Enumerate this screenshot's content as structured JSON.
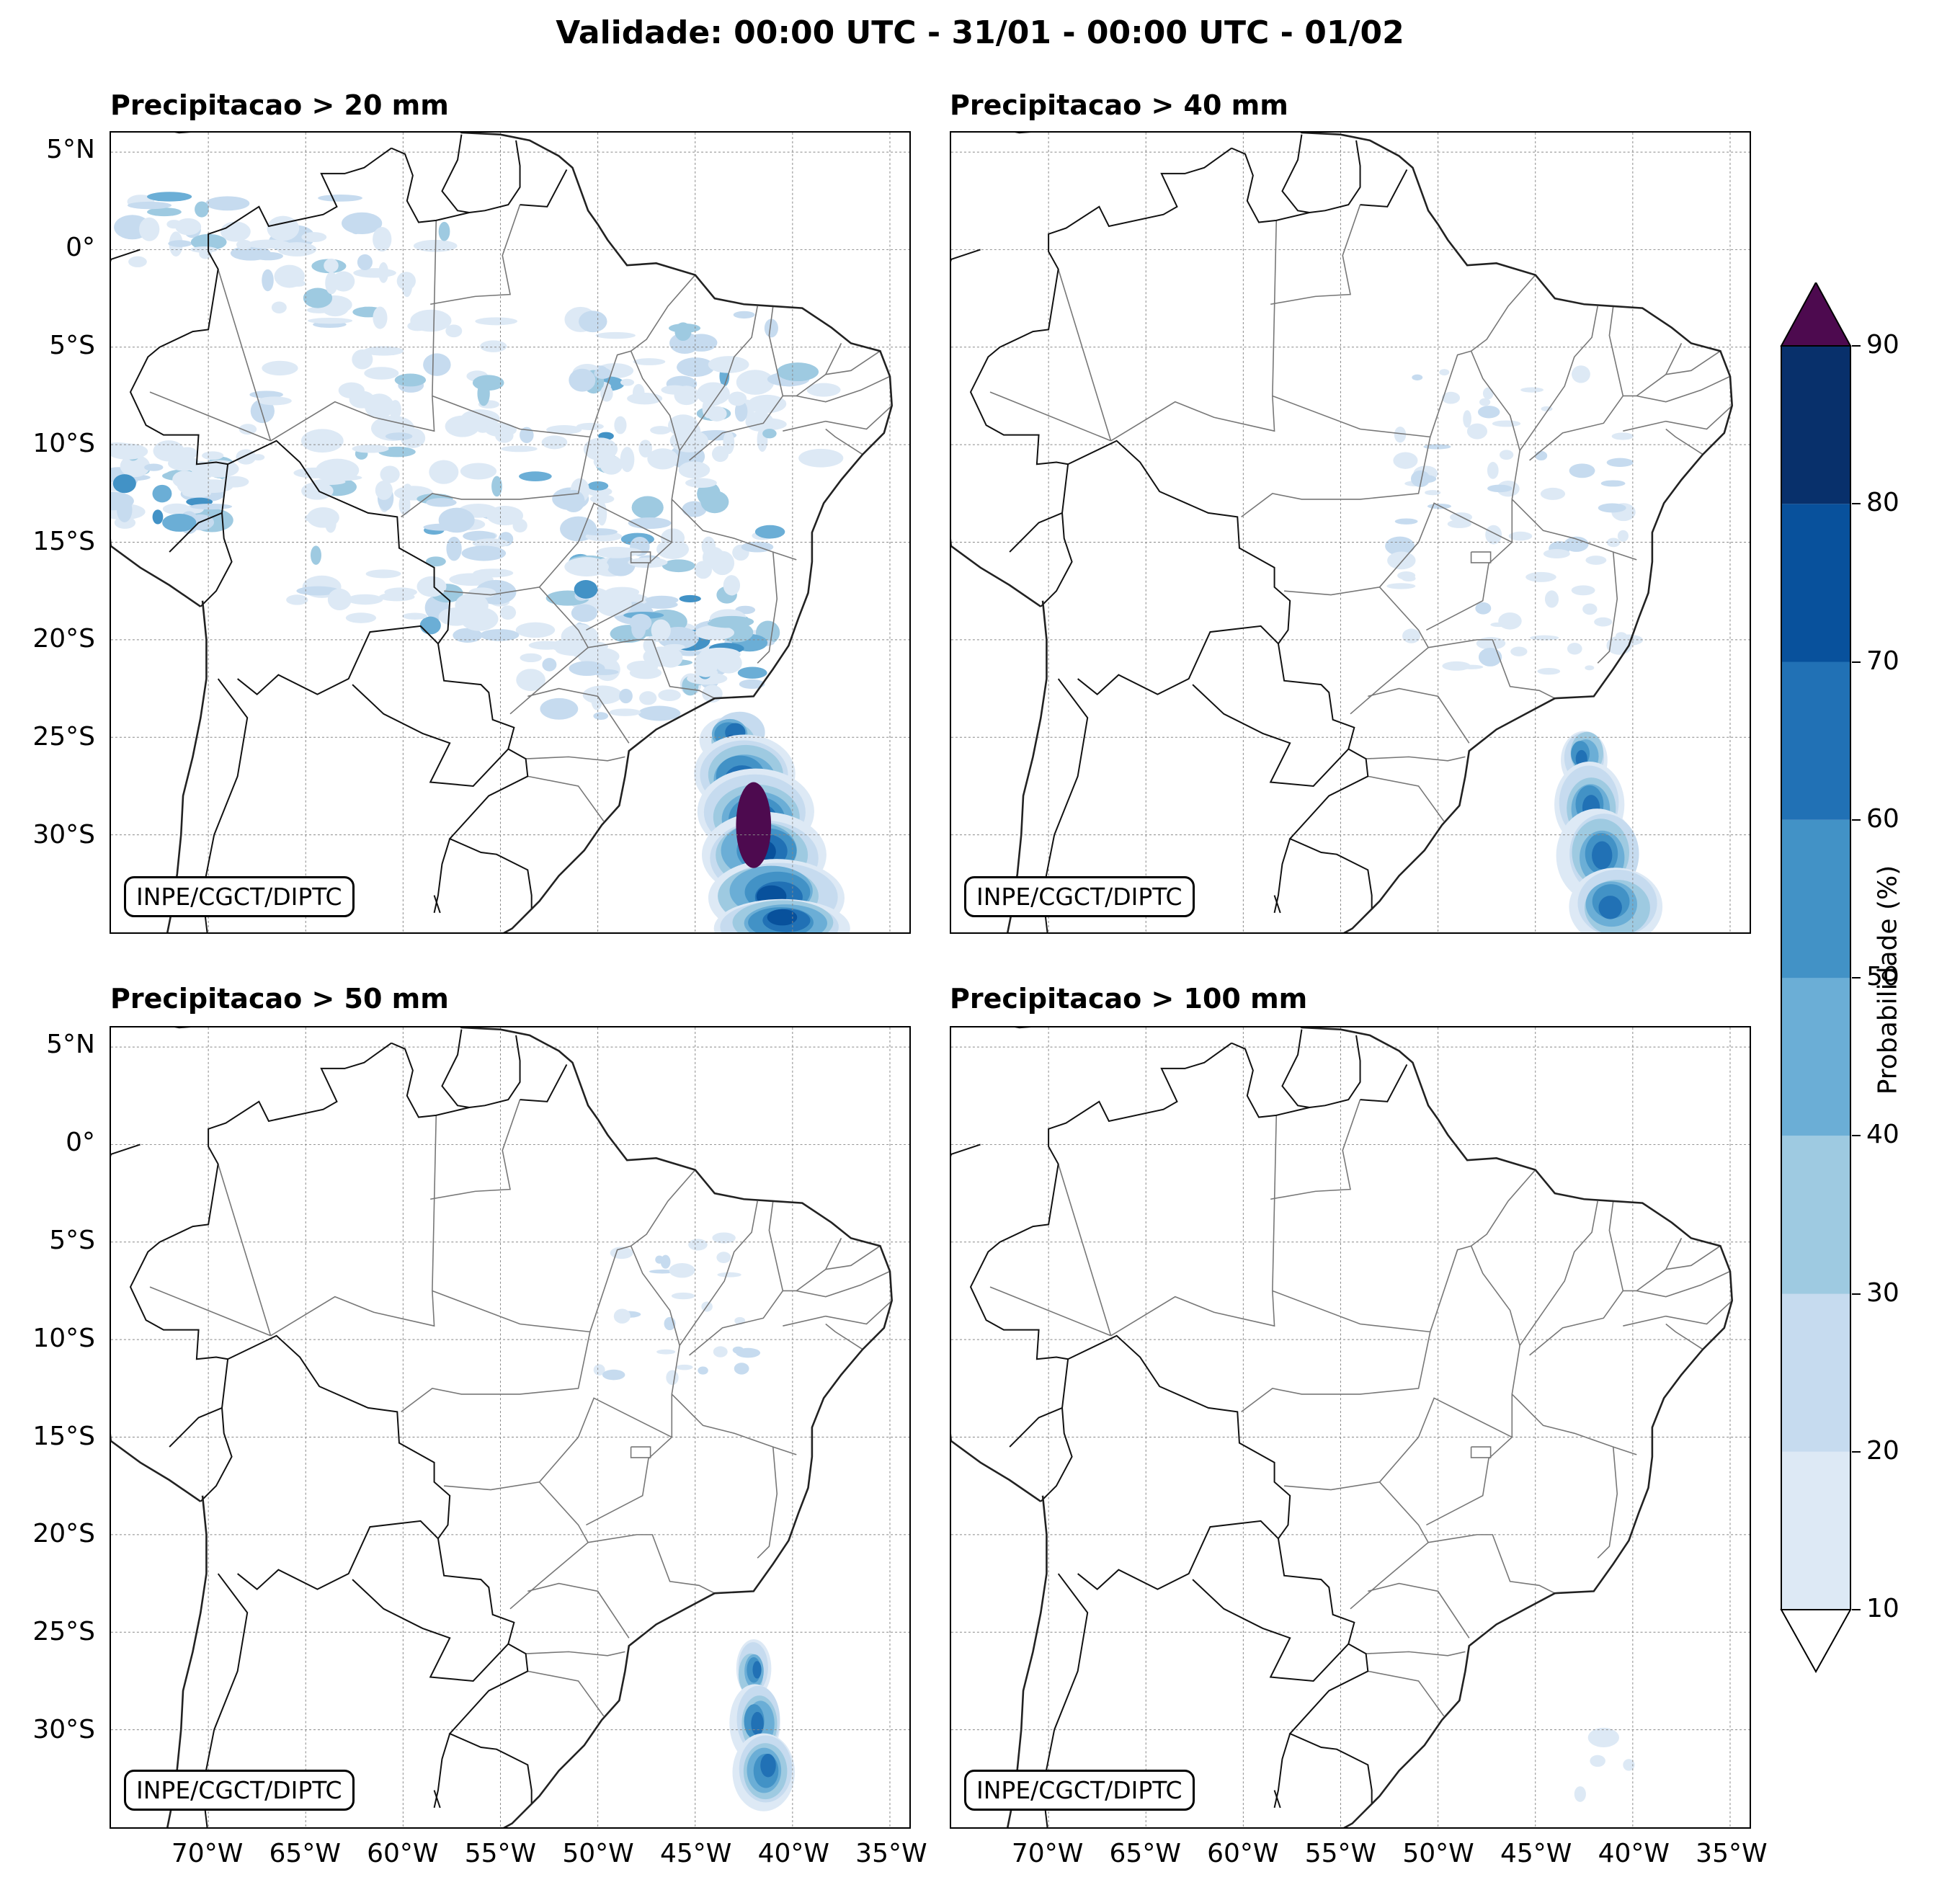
{
  "title": "Validade: 00:00 UTC - 31/01 - 00:00 UTC - 01/02",
  "panels": [
    {
      "id": "p20",
      "title": "Precipitacao > 20 mm",
      "credit": "INPE/CGCT/DIPTC"
    },
    {
      "id": "p40",
      "title": "Precipitacao > 40 mm",
      "credit": "INPE/CGCT/DIPTC"
    },
    {
      "id": "p50",
      "title": "Precipitacao > 50 mm",
      "credit": "INPE/CGCT/DIPTC"
    },
    {
      "id": "p100",
      "title": "Precipitacao > 100 mm",
      "credit": "INPE/CGCT/DIPTC"
    }
  ],
  "lat_ticks": [
    "5°N",
    "0°",
    "5°S",
    "10°S",
    "15°S",
    "20°S",
    "25°S",
    "30°S"
  ],
  "lon_ticks": [
    "70°W",
    "65°W",
    "60°W",
    "55°W",
    "50°W",
    "45°W",
    "40°W",
    "35°W"
  ],
  "colorbar": {
    "label": "Probabilidade (%)",
    "ticks": [
      "10",
      "20",
      "30",
      "40",
      "50",
      "60",
      "70",
      "80",
      "90"
    ],
    "colors": [
      "#dde9f5",
      "#c6dbef",
      "#9ecae1",
      "#6baed6",
      "#4292c6",
      "#2171b5",
      "#08519c",
      "#08306b"
    ],
    "over_color": "#4d0a4f",
    "under_color": "#ffffff"
  }
}
